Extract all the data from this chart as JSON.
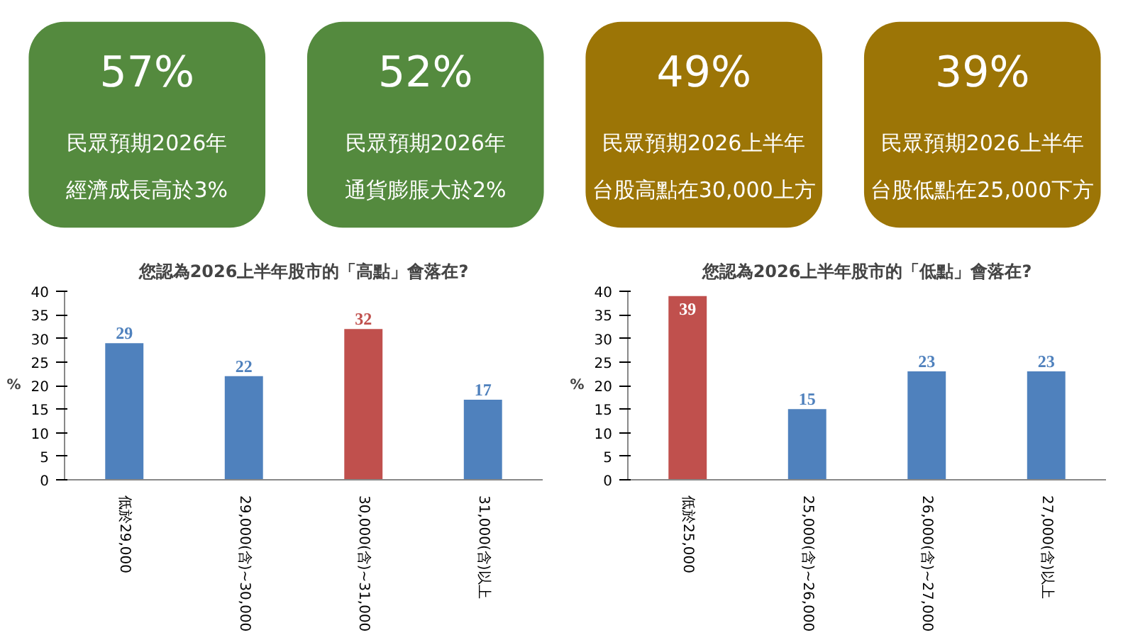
{
  "chart_data": [
    {
      "type": "other",
      "annotations": [
        "57%",
        "民眾預期2026年",
        "經濟成長高於3%",
        "52%",
        "民眾預期2026年",
        "通貨膨脹大於2%",
        "49%",
        "民眾預期2026上半年",
        "台股高點在30,000上方",
        "39%",
        "民眾預期2026上半年",
        "台股低點在25,000下方"
      ],
      "colors": [
        "#548a3e",
        "#548a3e",
        "#9c7506",
        "#9c7506"
      ]
    },
    {
      "type": "bar",
      "title": "您認為2026上半年股市的「高點」會落在?",
      "ylabel": "%",
      "categories": [
        "低於29,000",
        "29,000(含)~30,000",
        "30,000(含)~31,000",
        "31,000(含)以上"
      ],
      "values": [
        29,
        22,
        32,
        17
      ],
      "colors": [
        "#4f81bd",
        "#4f81bd",
        "#c0504d",
        "#4f81bd"
      ],
      "ylim": [
        0,
        40
      ],
      "yticks": [
        0,
        5,
        10,
        15,
        20,
        25,
        30,
        35,
        40
      ],
      "data_labels": true,
      "grid": false
    },
    {
      "type": "bar",
      "title": "您認為2026上半年股市的「低點」會落在?",
      "ylabel": "%",
      "categories": [
        "低於25,000",
        "25,000(含)~26,000",
        "26,000(含)~27,000",
        "27,000(含)以上"
      ],
      "values": [
        39,
        15,
        23,
        23
      ],
      "colors": [
        "#c0504d",
        "#4f81bd",
        "#4f81bd",
        "#4f81bd"
      ],
      "ylim": [
        0,
        40
      ],
      "yticks": [
        0,
        5,
        10,
        15,
        20,
        25,
        30,
        35,
        40
      ],
      "data_labels": true,
      "grid": false
    }
  ]
}
